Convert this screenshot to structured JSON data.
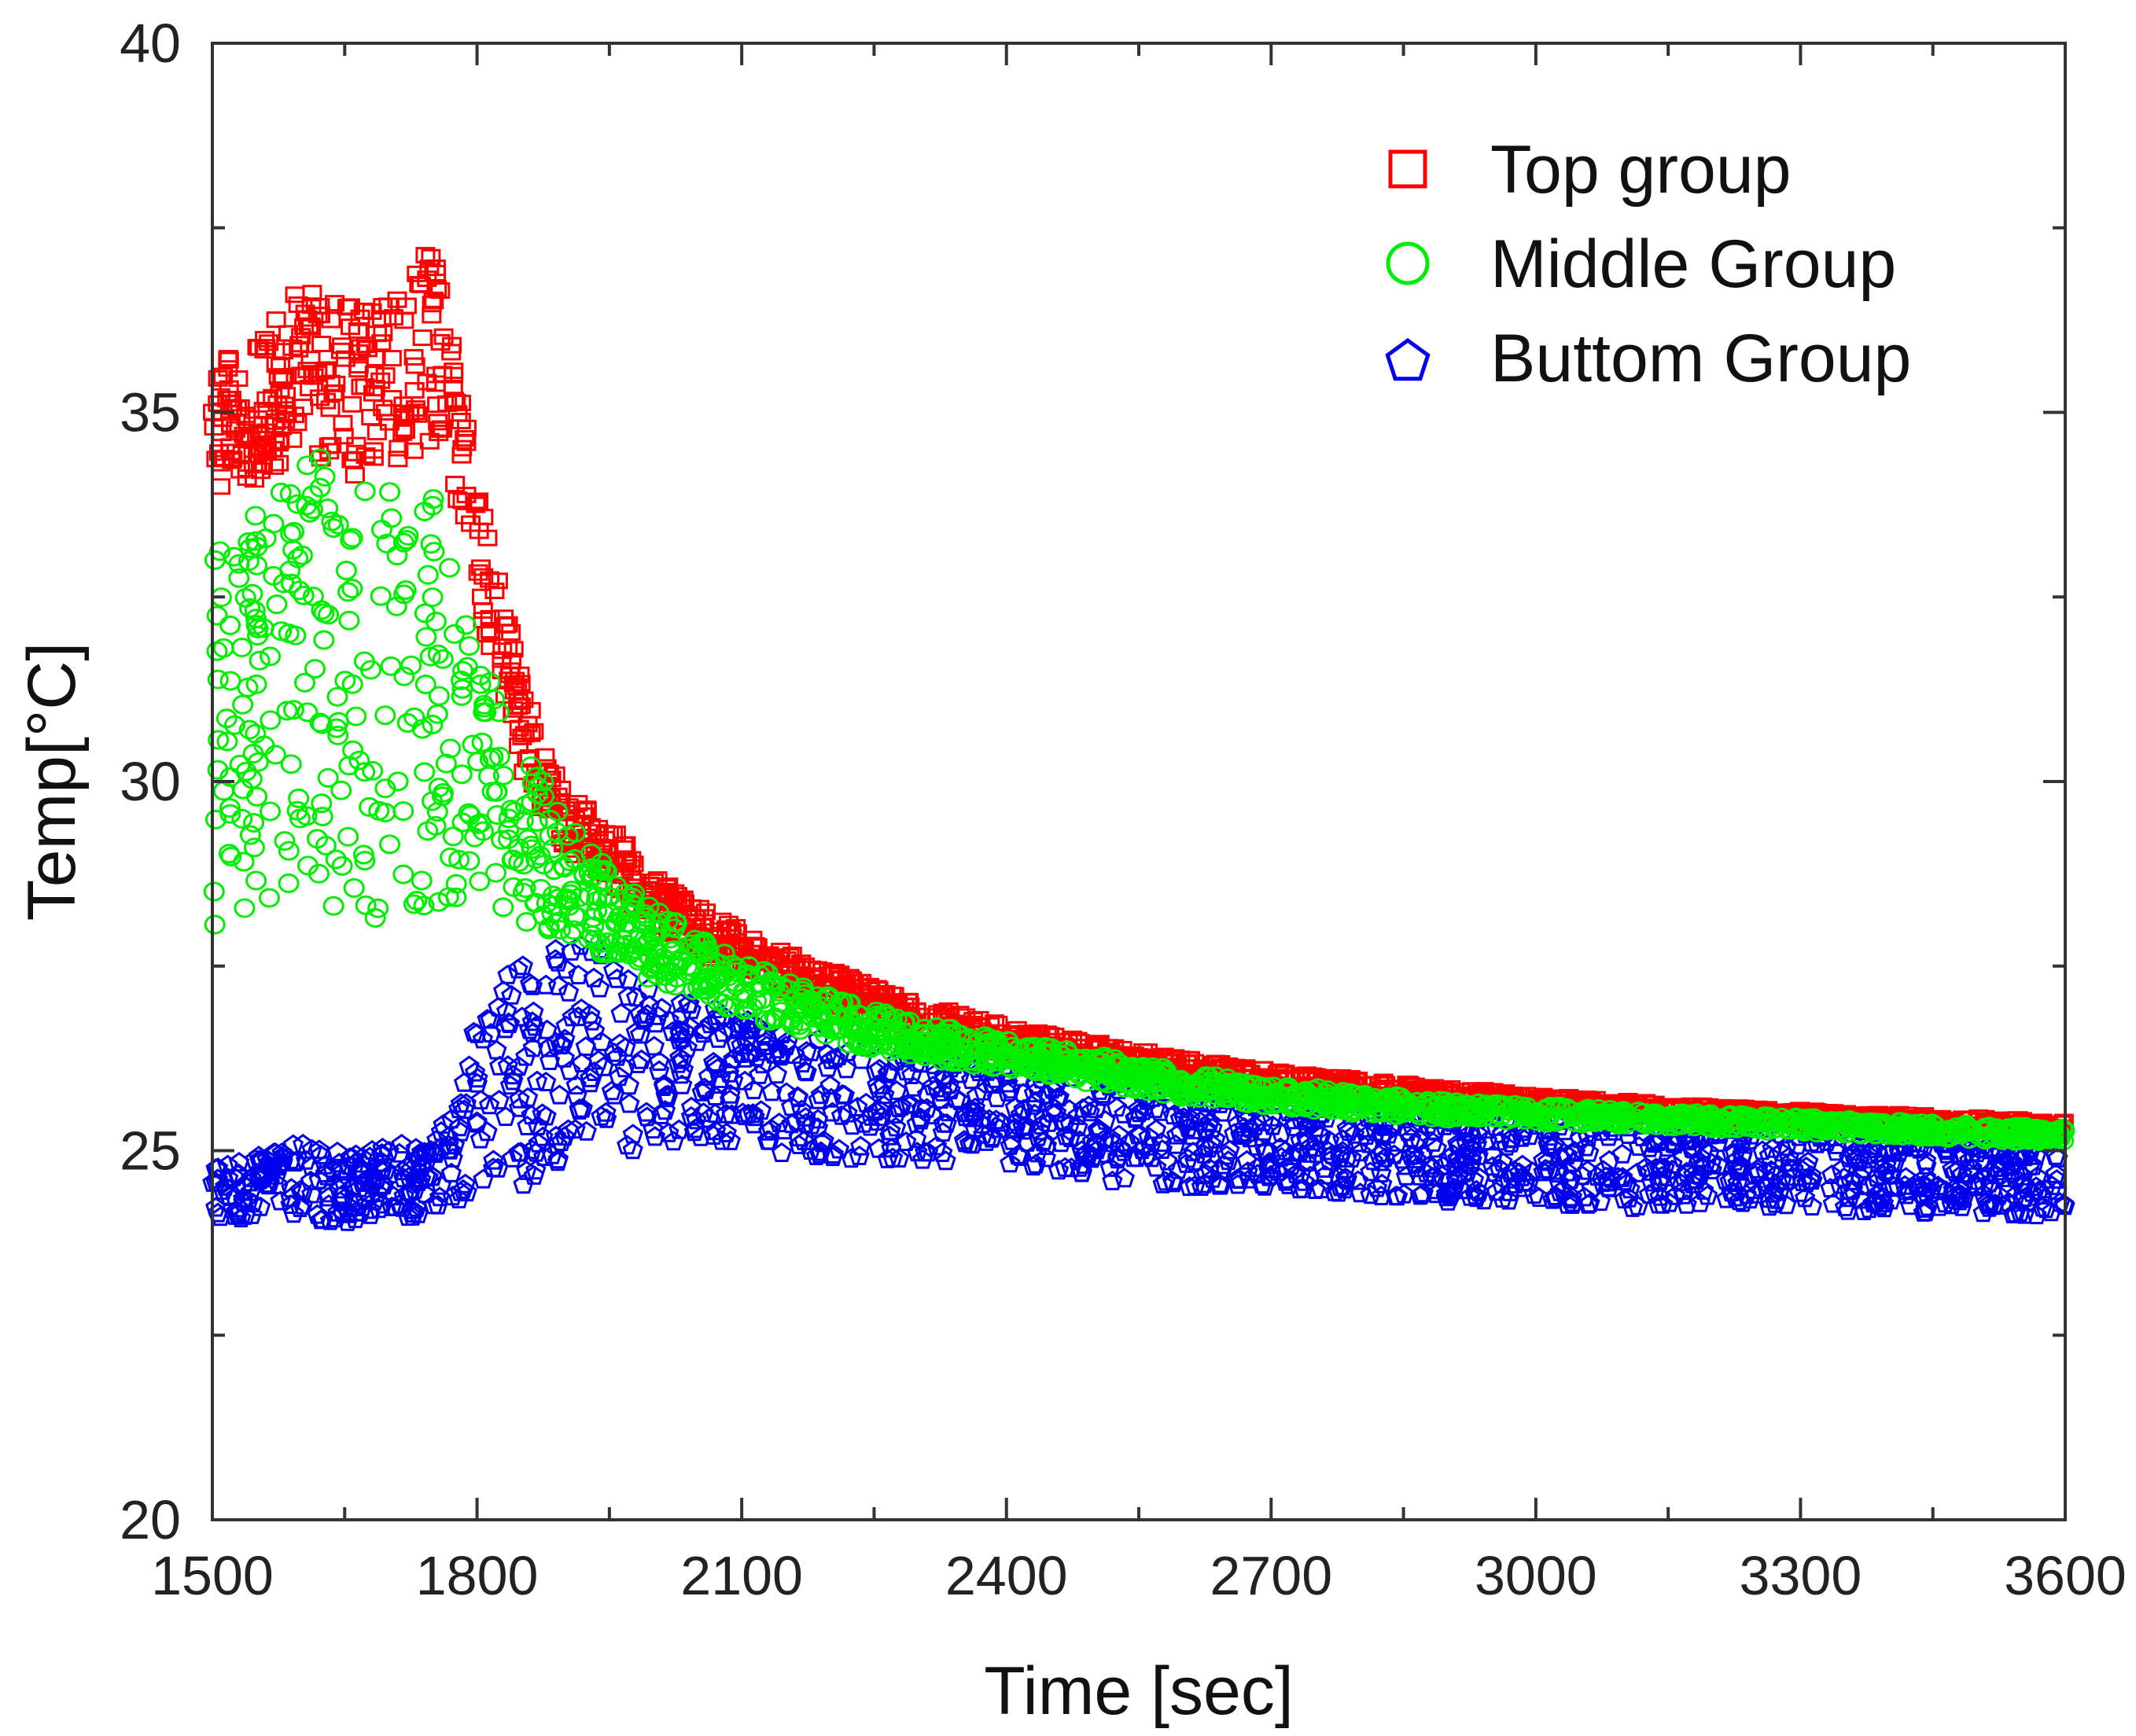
{
  "chart_data": {
    "type": "scatter",
    "title": "",
    "xlabel": "Time [sec]",
    "ylabel": "Temp[°C]",
    "xlim": [
      1500,
      3600
    ],
    "ylim": [
      20,
      40
    ],
    "xticks": [
      1500,
      1800,
      2100,
      2400,
      2700,
      3000,
      3300,
      3600
    ],
    "yticks": [
      20,
      25,
      30,
      35,
      40
    ],
    "grid": false,
    "legend_position": "top-right",
    "series": [
      {
        "name": "Top group",
        "marker": "square",
        "color": "#ff0000",
        "x": [
          1500,
          1550,
          1600,
          1650,
          1700,
          1750,
          1775,
          1800,
          1825,
          1850,
          1875,
          1900,
          1950,
          2000,
          2050,
          2100,
          2200,
          2300,
          2400,
          2500,
          2600,
          2700,
          2800,
          2900,
          3000,
          3100,
          3200,
          3300,
          3400,
          3500,
          3600
        ],
        "y": [
          34.8,
          35.0,
          35.6,
          35.3,
          35.4,
          36.0,
          34.8,
          33.2,
          32.0,
          30.8,
          30.0,
          29.5,
          29.0,
          28.4,
          28.0,
          27.7,
          27.2,
          26.8,
          26.5,
          26.3,
          26.1,
          25.95,
          25.85,
          25.75,
          25.65,
          25.58,
          25.5,
          25.45,
          25.4,
          25.35,
          25.3
        ],
        "spread": [
          1.0,
          0.9,
          1.1,
          1.2,
          1.1,
          1.4,
          0.9,
          0.8,
          0.8,
          0.6,
          0.5,
          0.4,
          0.4,
          0.35,
          0.3,
          0.3,
          0.25,
          0.2,
          0.2,
          0.18,
          0.15,
          0.14,
          0.12,
          0.12,
          0.1,
          0.1,
          0.1,
          0.1,
          0.1,
          0.1,
          0.1
        ]
      },
      {
        "name": "Middle Group",
        "marker": "circle",
        "color": "#00ee00",
        "x": [
          1500,
          1550,
          1600,
          1650,
          1700,
          1750,
          1800,
          1850,
          1900,
          1950,
          2000,
          2050,
          2100,
          2200,
          2300,
          2400,
          2500,
          2600,
          2700,
          2800,
          2900,
          3000,
          3100,
          3200,
          3300,
          3400,
          3500,
          3600
        ],
        "y": [
          30.5,
          31.0,
          31.5,
          31.2,
          31.0,
          31.3,
          30.0,
          29.3,
          28.7,
          28.2,
          27.8,
          27.5,
          27.2,
          26.8,
          26.5,
          26.3,
          26.1,
          25.9,
          25.75,
          25.65,
          25.55,
          25.5,
          25.45,
          25.4,
          25.35,
          25.3,
          25.25,
          25.2
        ],
        "spread": [
          2.6,
          2.7,
          3.0,
          3.2,
          3.0,
          3.0,
          1.8,
          1.2,
          0.8,
          0.6,
          0.5,
          0.4,
          0.35,
          0.3,
          0.25,
          0.2,
          0.2,
          0.18,
          0.15,
          0.15,
          0.12,
          0.12,
          0.1,
          0.1,
          0.1,
          0.1,
          0.1,
          0.1
        ]
      },
      {
        "name": "Buttom Group",
        "marker": "pentagon",
        "color": "#0000ee",
        "x": [
          1500,
          1550,
          1600,
          1650,
          1700,
          1750,
          1780,
          1800,
          1820,
          1850,
          1900,
          1950,
          2000,
          2100,
          2200,
          2300,
          2400,
          2500,
          2600,
          2700,
          2800,
          2900,
          3000,
          3100,
          3200,
          3300,
          3400,
          3500,
          3600
        ],
        "y": [
          24.6,
          24.5,
          24.6,
          24.5,
          24.6,
          24.6,
          25.0,
          25.8,
          26.0,
          26.0,
          26.3,
          26.4,
          26.1,
          25.9,
          25.7,
          25.6,
          25.5,
          25.3,
          25.2,
          25.1,
          25.0,
          24.9,
          24.9,
          24.8,
          24.8,
          24.75,
          24.7,
          24.7,
          24.6
        ],
        "spread": [
          0.5,
          0.5,
          0.5,
          0.5,
          0.5,
          0.5,
          0.8,
          1.2,
          1.5,
          1.5,
          1.5,
          1.4,
          1.1,
          0.9,
          0.8,
          0.8,
          0.7,
          0.7,
          0.7,
          0.6,
          0.6,
          0.6,
          0.6,
          0.6,
          0.55,
          0.55,
          0.55,
          0.55,
          0.5
        ]
      }
    ]
  }
}
